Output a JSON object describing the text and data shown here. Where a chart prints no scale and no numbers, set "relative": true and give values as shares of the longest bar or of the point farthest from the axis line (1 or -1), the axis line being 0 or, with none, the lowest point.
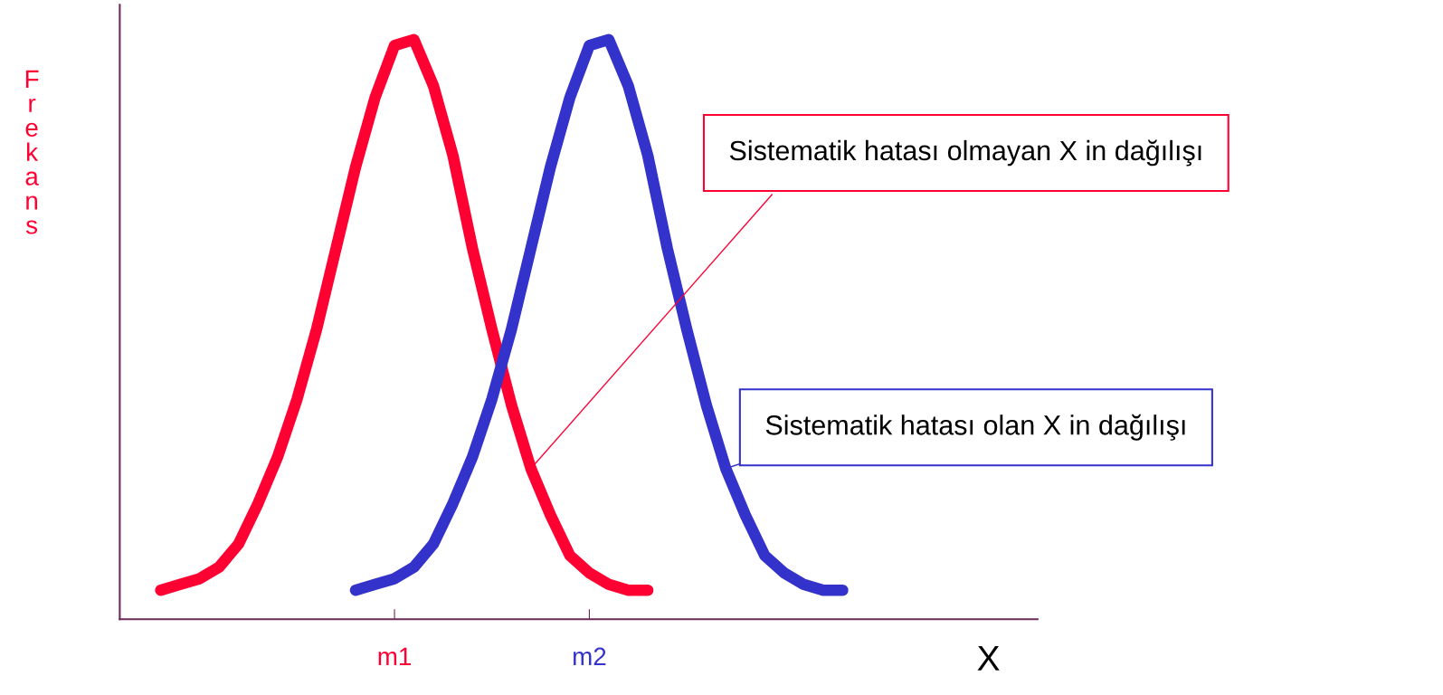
{
  "chart_data": {
    "type": "line",
    "relative": true,
    "ylabel": "Frekans",
    "xlabel": "X",
    "categories": [
      null,
      null,
      null,
      null,
      null,
      null,
      null,
      null,
      null,
      null,
      null,
      null,
      null,
      null,
      "m1",
      null,
      null,
      null,
      null,
      null,
      null,
      null,
      null,
      null,
      "m2",
      null,
      null,
      null,
      null,
      null,
      null,
      null,
      null,
      null,
      null,
      null,
      null,
      null,
      null,
      null,
      null,
      null,
      null,
      null,
      null,
      null,
      null,
      null
    ],
    "series": [
      {
        "color": "#ff0033",
        "values": [
          null,
          null,
          0.05,
          0.06,
          0.07,
          0.09,
          0.13,
          0.2,
          0.28,
          0.38,
          0.5,
          0.64,
          0.78,
          0.9,
          0.99,
          1,
          0.92,
          0.8,
          0.64,
          0.5,
          0.37,
          0.26,
          0.18,
          0.11,
          0.08,
          0.06,
          0.05,
          0.05,
          null,
          null,
          null,
          null,
          null,
          null,
          null,
          null,
          null,
          null,
          null,
          null,
          null,
          null,
          null,
          null,
          null,
          null,
          null,
          null
        ]
      },
      {
        "color": "#3333cc",
        "values": [
          null,
          null,
          null,
          null,
          null,
          null,
          null,
          null,
          null,
          null,
          null,
          null,
          0.05,
          0.06,
          0.07,
          0.09,
          0.13,
          0.2,
          0.28,
          0.38,
          0.5,
          0.64,
          0.78,
          0.9,
          0.99,
          1,
          0.92,
          0.8,
          0.64,
          0.5,
          0.37,
          0.26,
          0.18,
          0.11,
          0.08,
          0.06,
          0.05,
          0.05,
          null,
          null,
          null,
          null,
          null,
          null,
          null,
          null,
          null,
          null
        ]
      }
    ],
    "annotations": [
      "Sistematik hatası olmayan X in dağılışı",
      "Sistematik hatası olan X in dağılışı"
    ]
  }
}
